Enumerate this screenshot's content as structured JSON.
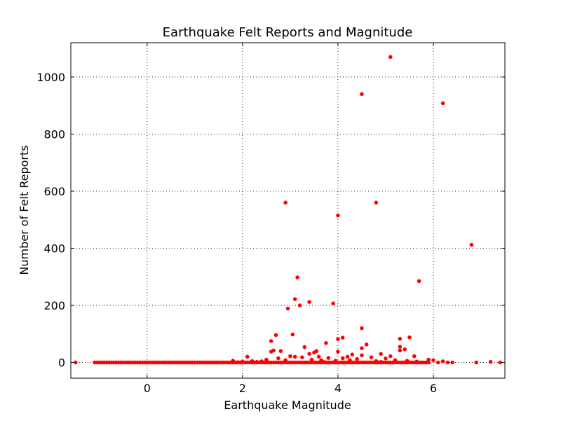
{
  "chart_data": {
    "type": "scatter",
    "title": "Earthquake Felt Reports and Magnitude",
    "xlabel": "Earthquake Magnitude",
    "ylabel": "Number of Felt Reports",
    "xlim": [
      -1.6,
      7.5
    ],
    "ylim": [
      -55,
      1120
    ],
    "x_ticks": [
      0,
      2,
      4,
      6
    ],
    "y_ticks": [
      0,
      200,
      400,
      600,
      800,
      1000
    ],
    "x_tick_labels": [
      "0",
      "2",
      "4",
      "6"
    ],
    "y_tick_labels": [
      "0",
      "200",
      "400",
      "600",
      "800",
      "1000"
    ],
    "grid": true,
    "marker_color": "#ff0000",
    "points": [
      {
        "x": 5.1,
        "y": 1070
      },
      {
        "x": 4.5,
        "y": 940
      },
      {
        "x": 6.2,
        "y": 908
      },
      {
        "x": 2.9,
        "y": 560
      },
      {
        "x": 4.8,
        "y": 560
      },
      {
        "x": 4.0,
        "y": 515
      },
      {
        "x": 6.8,
        "y": 412
      },
      {
        "x": 3.15,
        "y": 298
      },
      {
        "x": 5.7,
        "y": 285
      },
      {
        "x": 3.1,
        "y": 222
      },
      {
        "x": 3.4,
        "y": 212
      },
      {
        "x": 3.9,
        "y": 207
      },
      {
        "x": 3.2,
        "y": 200
      },
      {
        "x": 2.95,
        "y": 189
      },
      {
        "x": 4.5,
        "y": 120
      },
      {
        "x": 2.7,
        "y": 96
      },
      {
        "x": 3.05,
        "y": 98
      },
      {
        "x": 5.5,
        "y": 88
      },
      {
        "x": 4.1,
        "y": 87
      },
      {
        "x": 4.0,
        "y": 82
      },
      {
        "x": 5.3,
        "y": 83
      },
      {
        "x": 2.6,
        "y": 75
      },
      {
        "x": 3.75,
        "y": 68
      },
      {
        "x": 4.6,
        "y": 63
      },
      {
        "x": 3.3,
        "y": 54
      },
      {
        "x": 5.3,
        "y": 55
      },
      {
        "x": 4.5,
        "y": 50
      },
      {
        "x": 5.4,
        "y": 46
      },
      {
        "x": 2.65,
        "y": 42
      },
      {
        "x": 2.6,
        "y": 38
      },
      {
        "x": 2.8,
        "y": 40
      },
      {
        "x": 3.55,
        "y": 40
      },
      {
        "x": 4.0,
        "y": 38
      },
      {
        "x": 3.5,
        "y": 35
      },
      {
        "x": 5.3,
        "y": 42
      },
      {
        "x": 4.9,
        "y": 30
      },
      {
        "x": 4.3,
        "y": 28
      },
      {
        "x": 3.4,
        "y": 30
      },
      {
        "x": 4.5,
        "y": 25
      },
      {
        "x": 3.0,
        "y": 22
      },
      {
        "x": 2.1,
        "y": 20
      },
      {
        "x": 3.6,
        "y": 20
      },
      {
        "x": 3.1,
        "y": 20
      },
      {
        "x": 4.2,
        "y": 20
      },
      {
        "x": 5.1,
        "y": 22
      },
      {
        "x": 5.6,
        "y": 22
      },
      {
        "x": 3.25,
        "y": 18
      },
      {
        "x": 4.7,
        "y": 18
      },
      {
        "x": 2.75,
        "y": 15
      },
      {
        "x": 3.8,
        "y": 16
      },
      {
        "x": 4.1,
        "y": 15
      },
      {
        "x": 4.4,
        "y": 12
      },
      {
        "x": 5.0,
        "y": 14
      },
      {
        "x": 5.9,
        "y": 10
      },
      {
        "x": 2.5,
        "y": 10
      },
      {
        "x": 2.9,
        "y": 8
      },
      {
        "x": 3.45,
        "y": 10
      },
      {
        "x": 3.65,
        "y": 8
      },
      {
        "x": 4.25,
        "y": 8
      },
      {
        "x": 5.2,
        "y": 8
      },
      {
        "x": 6.0,
        "y": 8
      },
      {
        "x": 1.8,
        "y": 6
      },
      {
        "x": 2.2,
        "y": 5
      },
      {
        "x": 2.4,
        "y": 4
      },
      {
        "x": 3.95,
        "y": 6
      },
      {
        "x": 4.8,
        "y": 5
      },
      {
        "x": 5.45,
        "y": 6
      },
      {
        "x": 6.2,
        "y": 4
      },
      {
        "x": 7.2,
        "y": 2
      },
      {
        "x": 6.9,
        "y": 0
      },
      {
        "x": 7.4,
        "y": 0
      },
      {
        "x": 6.4,
        "y": 0
      },
      {
        "x": 6.3,
        "y": 0
      },
      {
        "x": 6.1,
        "y": 0
      },
      {
        "x": 5.85,
        "y": 0
      },
      {
        "x": 5.75,
        "y": 0
      },
      {
        "x": 2.3,
        "y": 2
      },
      {
        "x": 2.0,
        "y": 3
      },
      {
        "x": 1.9,
        "y": 1
      },
      {
        "x": 3.7,
        "y": 2
      },
      {
        "x": 4.9,
        "y": 2
      },
      {
        "x": 5.65,
        "y": 3
      },
      {
        "x": -1.5,
        "y": 0
      }
    ],
    "zero_band": {
      "x_min": -1.1,
      "x_max": 5.9,
      "step": 0.05,
      "y": 0
    }
  }
}
